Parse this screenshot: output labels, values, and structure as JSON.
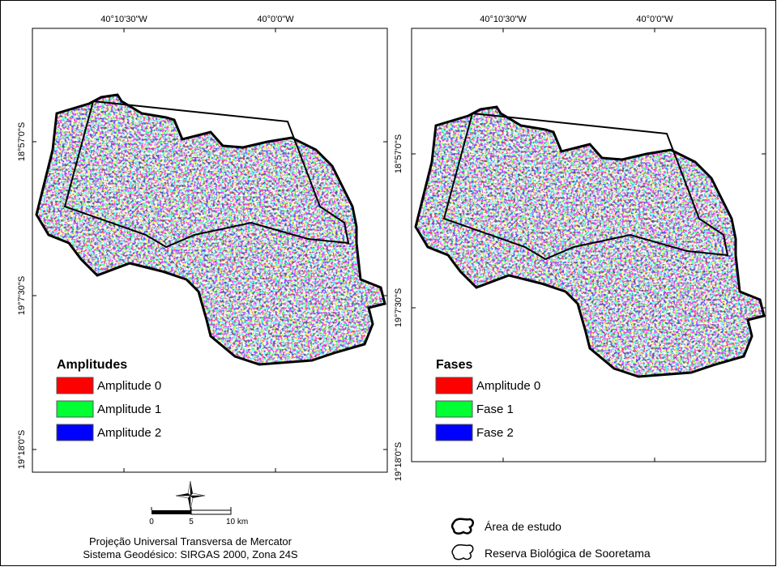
{
  "maps": [
    {
      "x_ticks": [
        "40°10'30\"W",
        "40°0'0\"W"
      ],
      "y_ticks": [
        "18°57'0\"S",
        "19°7'30\"S",
        "19°18'0\"S"
      ],
      "legend_title": "Amplitudes",
      "legend_items": [
        {
          "label": "Amplitude 0",
          "color": "#ff0000"
        },
        {
          "label": "Amplitude 1",
          "color": "#00ff33"
        },
        {
          "label": "Amplitude 2",
          "color": "#0000ff"
        }
      ]
    },
    {
      "x_ticks": [
        "40°10'30\"W",
        "40°0'0\"W"
      ],
      "y_ticks": [
        "18°57'0\"S",
        "19°7'30\"S",
        "19°18'0\"S"
      ],
      "legend_title": "Fases",
      "legend_items": [
        {
          "label": "Amplitude 0",
          "color": "#ff0000"
        },
        {
          "label": "Fase 1",
          "color": "#00ff33"
        },
        {
          "label": "Fase 2",
          "color": "#0000ff"
        }
      ]
    }
  ],
  "scale_bar": {
    "labels": [
      "0",
      "5",
      "10 km"
    ]
  },
  "projection": [
    "Projeção Universal Transversa de Mercator",
    "Sistema Geodésico: SIRGAS 2000, Zona 24S"
  ],
  "boundary_legend": [
    "Área de estudo",
    "Reserva Biológica de Sooretama"
  ]
}
